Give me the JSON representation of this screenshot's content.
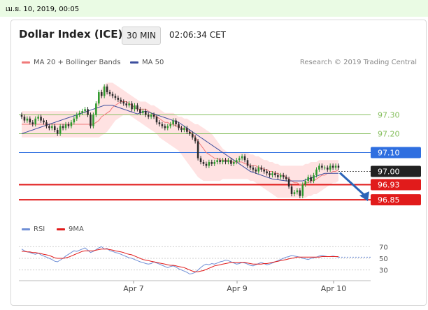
{
  "header": {
    "date": "เม.ย. 10, 2019, 00:05",
    "title": "Dollar Index (ICE)",
    "timeframe": "30 MIN",
    "time": "02:06:34 CET",
    "credit": "Research © 2019 Trading Central"
  },
  "legend": {
    "ma20": "MA 20 + Bollinger Bands",
    "ma50": "MA 50",
    "rsi": "RSI",
    "ma9": "9MA"
  },
  "colors": {
    "up": "#2e9a2e",
    "down": "#2b2b2b",
    "band": "#ffd6d6",
    "ma20": "#f07a7a",
    "ma50": "#3d4f9e",
    "green_level": "#88c060",
    "resistance": "#2f6fe0",
    "support": "#e11b1b",
    "price": "#222222",
    "arrow": "#2b64b8"
  },
  "chart_data": {
    "type": "line",
    "price_axis": {
      "min": 96.78,
      "max": 97.52
    },
    "x_ticks": [
      "Apr 7",
      "Apr 9",
      "Apr 10"
    ],
    "levels": [
      {
        "value": 97.3,
        "label": "97.30",
        "style": "green"
      },
      {
        "value": 97.2,
        "label": "97.20",
        "style": "green"
      },
      {
        "value": 97.1,
        "label": "97.10",
        "style": "resistance"
      },
      {
        "value": 97.0,
        "label": "97.00",
        "style": "price"
      },
      {
        "value": 96.93,
        "label": "96.93",
        "style": "support"
      },
      {
        "value": 96.85,
        "label": "96.85",
        "style": "support"
      }
    ],
    "forecast": {
      "from": 97.0,
      "to": 96.85
    },
    "close": [
      97.29,
      97.27,
      97.28,
      97.26,
      97.25,
      97.28,
      97.29,
      97.27,
      97.26,
      97.24,
      97.23,
      97.24,
      97.22,
      97.2,
      97.24,
      97.23,
      97.25,
      97.24,
      97.26,
      97.28,
      97.3,
      97.31,
      97.32,
      97.33,
      97.3,
      97.24,
      97.3,
      97.36,
      97.42,
      97.4,
      97.45,
      97.42,
      97.41,
      97.4,
      97.39,
      97.38,
      97.37,
      97.36,
      97.35,
      97.36,
      97.33,
      97.35,
      97.33,
      97.31,
      97.32,
      97.3,
      97.29,
      97.3,
      97.29,
      97.26,
      97.25,
      97.24,
      97.23,
      97.24,
      97.25,
      97.27,
      97.25,
      97.23,
      97.22,
      97.23,
      97.21,
      97.2,
      97.18,
      97.16,
      97.07,
      97.05,
      97.04,
      97.03,
      97.05,
      97.04,
      97.05,
      97.06,
      97.05,
      97.06,
      97.05,
      97.06,
      97.04,
      97.05,
      97.06,
      97.07,
      97.08,
      97.06,
      97.03,
      97.02,
      97.01,
      97.0,
      97.02,
      97.01,
      97.0,
      96.99,
      96.98,
      96.99,
      96.98,
      96.97,
      96.98,
      96.97,
      96.96,
      96.92,
      96.88,
      96.89,
      96.9,
      96.87,
      96.93,
      96.95,
      96.97,
      96.95,
      96.98,
      97.01,
      97.03,
      97.02,
      97.02,
      97.01,
      97.03,
      97.02,
      97.03,
      97.02
    ],
    "ma20": [
      97.25,
      97.25,
      97.25,
      97.25,
      97.25,
      97.25,
      97.25,
      97.25,
      97.25,
      97.25,
      97.25,
      97.25,
      97.25,
      97.25,
      97.25,
      97.25,
      97.25,
      97.25,
      97.25,
      97.25,
      97.25,
      97.25,
      97.25,
      97.25,
      97.25,
      97.25,
      97.25,
      97.26,
      97.27,
      97.29,
      97.3,
      97.31,
      97.32,
      97.34,
      97.35,
      97.36,
      97.37,
      97.37,
      97.37,
      97.36,
      97.35,
      97.34,
      97.33,
      97.33,
      97.33,
      97.33,
      97.32,
      97.31,
      97.3,
      97.29,
      97.28,
      97.27,
      97.26,
      97.26,
      97.25,
      97.25,
      97.24,
      97.24,
      97.23,
      97.23,
      97.22,
      97.21,
      97.2,
      97.18,
      97.16,
      97.14,
      97.12,
      97.1,
      97.09,
      97.08,
      97.07,
      97.07,
      97.06,
      97.06,
      97.06,
      97.06,
      97.05,
      97.05,
      97.05,
      97.05,
      97.05,
      97.04,
      97.04,
      97.03,
      97.03,
      97.03,
      97.02,
      97.02,
      97.01,
      97.01,
      97.0,
      97.0,
      96.99,
      96.99,
      96.98,
      96.98,
      96.97,
      96.96,
      96.95,
      96.94,
      96.94,
      96.93,
      96.93,
      96.94,
      96.94,
      96.95,
      96.95,
      96.96,
      96.97,
      96.98,
      96.98,
      96.99,
      96.99,
      97.0,
      97.0,
      97.01
    ],
    "upper": [
      97.32,
      97.32,
      97.32,
      97.32,
      97.32,
      97.32,
      97.32,
      97.32,
      97.32,
      97.32,
      97.32,
      97.32,
      97.32,
      97.32,
      97.32,
      97.32,
      97.32,
      97.32,
      97.32,
      97.32,
      97.32,
      97.32,
      97.32,
      97.32,
      97.32,
      97.32,
      97.32,
      97.35,
      97.4,
      97.44,
      97.46,
      97.47,
      97.47,
      97.47,
      97.46,
      97.45,
      97.44,
      97.43,
      97.42,
      97.41,
      97.4,
      97.39,
      97.38,
      97.37,
      97.37,
      97.37,
      97.36,
      97.35,
      97.35,
      97.34,
      97.33,
      97.32,
      97.31,
      97.31,
      97.31,
      97.31,
      97.3,
      97.29,
      97.29,
      97.28,
      97.28,
      97.27,
      97.26,
      97.25,
      97.25,
      97.24,
      97.23,
      97.22,
      97.21,
      97.2,
      97.18,
      97.16,
      97.14,
      97.12,
      97.11,
      97.1,
      97.1,
      97.1,
      97.1,
      97.1,
      97.1,
      97.1,
      97.1,
      97.09,
      97.09,
      97.08,
      97.08,
      97.07,
      97.06,
      97.06,
      97.05,
      97.05,
      97.04,
      97.04,
      97.03,
      97.03,
      97.03,
      97.03,
      97.03,
      97.03,
      97.03,
      97.03,
      97.03,
      97.04,
      97.04,
      97.05,
      97.05,
      97.05,
      97.06,
      97.06,
      97.06,
      97.06,
      97.06,
      97.06,
      97.06,
      97.06
    ],
    "lower": [
      97.18,
      97.18,
      97.18,
      97.18,
      97.18,
      97.18,
      97.18,
      97.18,
      97.18,
      97.18,
      97.18,
      97.18,
      97.18,
      97.18,
      97.18,
      97.18,
      97.18,
      97.18,
      97.18,
      97.18,
      97.18,
      97.18,
      97.18,
      97.18,
      97.18,
      97.18,
      97.18,
      97.18,
      97.18,
      97.19,
      97.2,
      97.21,
      97.23,
      97.25,
      97.27,
      97.28,
      97.29,
      97.3,
      97.3,
      97.3,
      97.29,
      97.28,
      97.27,
      97.26,
      97.25,
      97.24,
      97.23,
      97.22,
      97.21,
      97.2,
      97.18,
      97.17,
      97.16,
      97.15,
      97.14,
      97.13,
      97.12,
      97.11,
      97.09,
      97.07,
      97.05,
      97.03,
      97.01,
      96.99,
      96.97,
      96.96,
      96.95,
      96.95,
      96.95,
      96.95,
      96.95,
      96.95,
      96.95,
      96.96,
      96.96,
      96.96,
      96.96,
      96.96,
      96.96,
      96.96,
      96.96,
      96.96,
      96.96,
      96.95,
      96.95,
      96.94,
      96.93,
      96.92,
      96.91,
      96.9,
      96.89,
      96.88,
      96.87,
      96.86,
      96.86,
      96.86,
      96.86,
      96.86,
      96.86,
      96.86,
      96.86,
      96.86,
      96.86,
      96.86,
      96.87,
      96.87,
      96.88,
      96.88,
      96.89,
      96.9,
      96.91,
      96.92,
      96.93,
      96.94,
      96.94,
      96.95
    ],
    "ma50": [
      97.2,
      97.205,
      97.21,
      97.215,
      97.22,
      97.225,
      97.23,
      97.235,
      97.24,
      97.245,
      97.25,
      97.255,
      97.26,
      97.265,
      97.27,
      97.275,
      97.28,
      97.285,
      97.29,
      97.295,
      97.3,
      97.305,
      97.31,
      97.315,
      97.32,
      97.325,
      97.33,
      97.335,
      97.34,
      97.345,
      97.35,
      97.35,
      97.35,
      97.35,
      97.345,
      97.34,
      97.335,
      97.33,
      97.325,
      97.32,
      97.315,
      97.31,
      97.305,
      97.31,
      97.315,
      97.32,
      97.315,
      97.31,
      97.305,
      97.3,
      97.295,
      97.29,
      97.285,
      97.28,
      97.275,
      97.27,
      97.265,
      97.26,
      97.25,
      97.24,
      97.23,
      97.22,
      97.21,
      97.2,
      97.19,
      97.18,
      97.17,
      97.16,
      97.15,
      97.14,
      97.13,
      97.12,
      97.11,
      97.1,
      97.09,
      97.08,
      97.07,
      97.06,
      97.05,
      97.04,
      97.03,
      97.02,
      97.01,
      97.0,
      96.995,
      96.99,
      96.985,
      96.98,
      96.975,
      96.97,
      96.965,
      96.96,
      96.958,
      96.956,
      96.954,
      96.952,
      96.95,
      96.95,
      96.95,
      96.95,
      96.95,
      96.95,
      96.95,
      96.955,
      96.96,
      96.965,
      96.97,
      96.975,
      96.98,
      96.985,
      96.99,
      96.99,
      96.99,
      96.99,
      96.99,
      96.99
    ],
    "rsi": {
      "ticks": [
        70,
        50,
        30
      ],
      "range": [
        20,
        80
      ],
      "rsi": [
        66,
        63,
        61,
        60,
        58,
        57,
        59,
        56,
        54,
        52,
        50,
        48,
        45,
        44,
        47,
        50,
        54,
        57,
        60,
        63,
        62,
        64,
        66,
        68,
        64,
        60,
        62,
        65,
        68,
        70,
        66,
        67,
        63,
        62,
        60,
        59,
        57,
        55,
        53,
        51,
        50,
        48,
        46,
        44,
        43,
        41,
        40,
        41,
        44,
        42,
        40,
        38,
        36,
        34,
        36,
        37,
        35,
        32,
        30,
        28,
        26,
        23,
        24,
        26,
        30,
        34,
        38,
        40,
        39,
        41,
        40,
        42,
        44,
        45,
        47,
        46,
        44,
        42,
        40,
        41,
        43,
        42,
        40,
        38,
        37,
        39,
        41,
        43,
        41,
        39,
        40,
        42,
        44,
        46,
        48,
        50,
        52,
        53,
        55,
        54,
        53,
        52,
        50,
        49,
        48,
        50,
        51,
        52,
        54,
        55,
        54,
        53,
        53,
        54,
        53,
        52
      ],
      "ma9": [
        62,
        62,
        61,
        61,
        60,
        60,
        59,
        58,
        57,
        56,
        55,
        53,
        51,
        50,
        50,
        50,
        51,
        52,
        54,
        56,
        58,
        60,
        62,
        63,
        63,
        63,
        63,
        64,
        65,
        66,
        66,
        66,
        65,
        64,
        63,
        62,
        61,
        60,
        58,
        57,
        56,
        54,
        52,
        50,
        48,
        47,
        46,
        45,
        44,
        43,
        42,
        41,
        40,
        39,
        38,
        38,
        37,
        36,
        35,
        34,
        32,
        30,
        28,
        27,
        27,
        28,
        29,
        31,
        33,
        35,
        37,
        38,
        39,
        40,
        41,
        42,
        43,
        43,
        43,
        43,
        43,
        43,
        42,
        41,
        40,
        40,
        40,
        40,
        41,
        41,
        42,
        43,
        44,
        45,
        46,
        47,
        48,
        49,
        50,
        51,
        52,
        52,
        52,
        52,
        52,
        52,
        52,
        52,
        52,
        53,
        53,
        53,
        53,
        53,
        53,
        53
      ]
    }
  }
}
